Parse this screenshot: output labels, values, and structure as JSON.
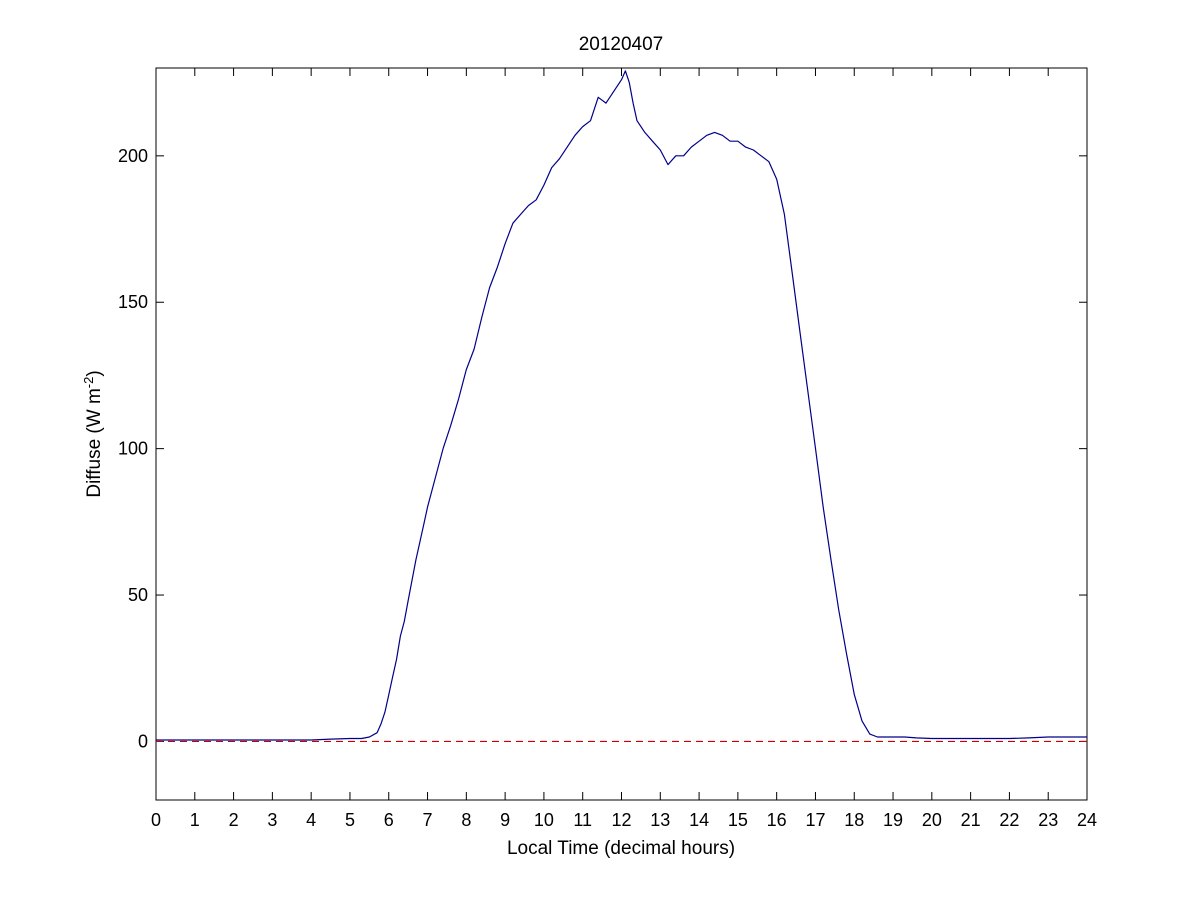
{
  "chart_data": {
    "type": "line",
    "title": "20120407",
    "xlabel": "Local Time (decimal hours)",
    "ylabel_main": "Diffuse (W m",
    "ylabel_sup": "-2",
    "ylabel_close": ")",
    "xlim": [
      0,
      24
    ],
    "ylim": [
      -20,
      230
    ],
    "xticks": [
      0,
      1,
      2,
      3,
      4,
      5,
      6,
      7,
      8,
      9,
      10,
      11,
      12,
      13,
      14,
      15,
      16,
      17,
      18,
      19,
      20,
      21,
      22,
      23,
      24
    ],
    "xtick_labels": [
      "0",
      "1",
      "2",
      "3",
      "4",
      "5",
      "6",
      "7",
      "8",
      "9",
      "10",
      "11",
      "12",
      "13",
      "14",
      "15",
      "16",
      "17",
      "18",
      "19",
      "20",
      "21",
      "22",
      "23",
      "24"
    ],
    "yticks": [
      0,
      50,
      100,
      150,
      200
    ],
    "ytick_labels": [
      "0",
      "50",
      "100",
      "150",
      "200"
    ],
    "grid": false,
    "reference_line": {
      "y": 0,
      "style": "dashed",
      "color": "#cc0000"
    },
    "series": [
      {
        "color": "#00008b",
        "x": [
          0,
          0.5,
          1,
          1.5,
          2,
          2.5,
          3,
          3.5,
          4,
          4.5,
          5,
          5.3,
          5.5,
          5.7,
          5.8,
          5.9,
          6.0,
          6.1,
          6.2,
          6.3,
          6.4,
          6.5,
          6.7,
          6.9,
          7.0,
          7.2,
          7.4,
          7.6,
          7.8,
          8.0,
          8.2,
          8.4,
          8.6,
          8.8,
          9.0,
          9.2,
          9.4,
          9.6,
          9.8,
          10.0,
          10.2,
          10.4,
          10.6,
          10.8,
          11.0,
          11.2,
          11.4,
          11.6,
          11.8,
          12.0,
          12.1,
          12.2,
          12.3,
          12.4,
          12.6,
          12.8,
          13.0,
          13.2,
          13.4,
          13.6,
          13.8,
          14.0,
          14.2,
          14.4,
          14.6,
          14.8,
          15.0,
          15.2,
          15.4,
          15.6,
          15.8,
          16.0,
          16.2,
          16.4,
          16.6,
          16.8,
          17.0,
          17.2,
          17.4,
          17.6,
          17.8,
          18.0,
          18.2,
          18.4,
          18.6,
          18.8,
          19.0,
          19.3,
          19.6,
          20.0,
          20.5,
          21.0,
          21.5,
          22.0,
          22.5,
          23.0,
          23.5,
          24.0
        ],
        "y": [
          0.5,
          0.5,
          0.5,
          0.5,
          0.5,
          0.5,
          0.5,
          0.5,
          0.5,
          0.8,
          1,
          1,
          1.5,
          3,
          6,
          10,
          16,
          22,
          28,
          36,
          41,
          48,
          62,
          74,
          80,
          90,
          100,
          108,
          117,
          127,
          134,
          145,
          155,
          162,
          170,
          177,
          180,
          183,
          185,
          190,
          196,
          199,
          203,
          207,
          210,
          212,
          220,
          218,
          222,
          226,
          229,
          225,
          218,
          212,
          208,
          205,
          202,
          197,
          200,
          200,
          203,
          205,
          207,
          208,
          207,
          205,
          205,
          203,
          202,
          200,
          198,
          192,
          180,
          160,
          140,
          120,
          100,
          80,
          62,
          45,
          30,
          16,
          7,
          2.5,
          1.5,
          1.5,
          1.5,
          1.5,
          1.2,
          1,
          1,
          1,
          1,
          1,
          1.2,
          1.5,
          1.5,
          1.5
        ]
      }
    ]
  }
}
